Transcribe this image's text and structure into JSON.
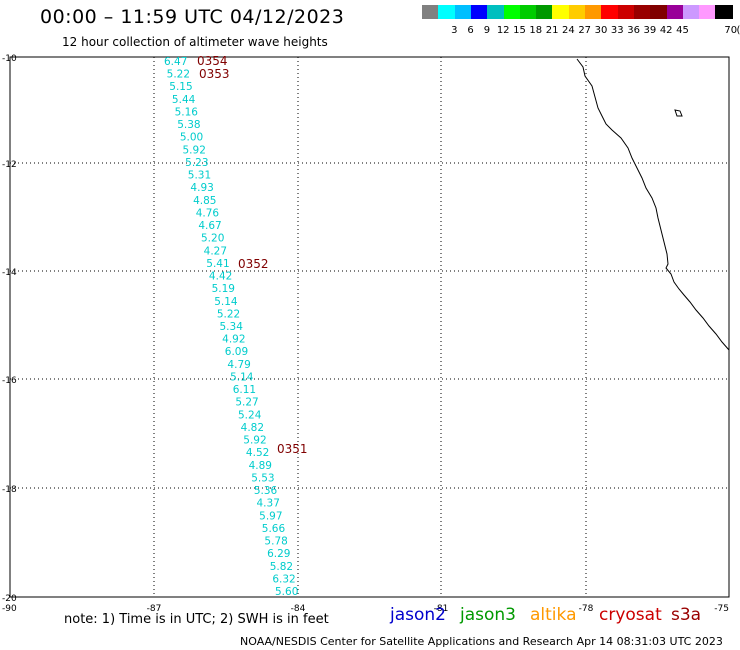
{
  "header": {
    "title": "00:00 – 11:59 UTC 04/12/2023",
    "subtitle": "12 hour collection of altimeter wave heights"
  },
  "scale": {
    "unit": "(ft)",
    "colors": [
      "#808080",
      "#00ffff",
      "#00bfff",
      "#0000ff",
      "#00bfbf",
      "#00ff00",
      "#00cc00",
      "#009900",
      "#ffff00",
      "#ffcc00",
      "#ff9900",
      "#ff0000",
      "#cc0000",
      "#990000",
      "#800000",
      "#990099",
      "#cc99ff",
      "#ff99ff",
      "#000000"
    ],
    "labels": [
      "3",
      "6",
      "9",
      "12",
      "15",
      "18",
      "21",
      "24",
      "27",
      "30",
      "33",
      "36",
      "39",
      "42",
      "45",
      "70"
    ]
  },
  "axes": {
    "lat_labels": [
      "-10",
      "-12",
      "-14",
      "-16",
      "-18",
      "-20"
    ],
    "lon_labels": [
      "-90",
      "-87",
      "-84",
      "-81",
      "-78",
      "-75"
    ]
  },
  "track": {
    "value_color": "#00cccc",
    "time_color": "#800000",
    "values": [
      "6.47",
      "5.22",
      "5.15",
      "5.44",
      "5.16",
      "5.38",
      "5.00",
      "5.92",
      "5.23",
      "5.31",
      "4.93",
      "4.85",
      "4.76",
      "4.67",
      "5.20",
      "4.27",
      "5.41",
      "4.42",
      "5.19",
      "5.14",
      "5.22",
      "5.34",
      "4.92",
      "6.09",
      "4.79",
      "5.14",
      "6.11",
      "5.27",
      "5.24",
      "4.82",
      "5.92",
      "4.52",
      "4.89",
      "5.53",
      "5.36",
      "4.37",
      "5.97",
      "5.66",
      "5.78",
      "6.29",
      "5.82",
      "6.32",
      "5.60"
    ],
    "times": [
      "0354",
      "0353",
      "0352",
      "0351"
    ]
  },
  "footer": {
    "note": "note:  1) Time is in UTC; 2) SWH is in feet",
    "satellites": [
      {
        "name": "jason2",
        "color": "#0000cc"
      },
      {
        "name": "jason3",
        "color": "#009900"
      },
      {
        "name": "altika",
        "color": "#ff9900"
      },
      {
        "name": "cryosat",
        "color": "#cc0000"
      },
      {
        "name": "s3a",
        "color": "#990000"
      }
    ],
    "credit": "NOAA/NESDIS Center for Satellite Applications and Research    Apr 14 08:31:03 UTC 2023"
  }
}
